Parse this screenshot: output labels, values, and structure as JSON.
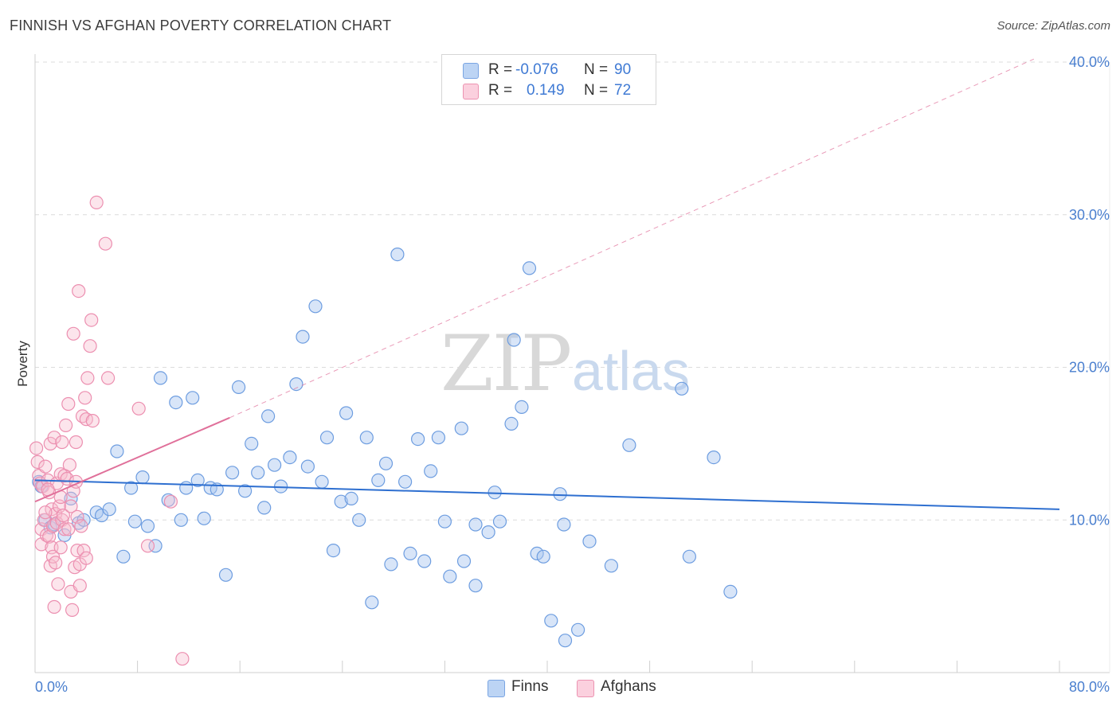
{
  "header": {
    "title": "FINNISH VS AFGHAN POVERTY CORRELATION CHART",
    "source": "Source: ZipAtlas.com"
  },
  "watermark": {
    "zip": "ZIP",
    "atlas": "atlas"
  },
  "legend": {
    "rows": [
      {
        "r_label": "R =",
        "r_value": "-0.076",
        "n_label": "N =",
        "n_value": "90",
        "color": "#a8c6f0",
        "border": "#7aa5e3"
      },
      {
        "r_label": "R =",
        "r_value": "0.149",
        "n_label": "N =",
        "n_value": "72",
        "color": "#f7bdd0",
        "border": "#ec93b1"
      }
    ]
  },
  "bottom_legend": {
    "finns": "Finns",
    "afghans": "Afghans"
  },
  "colors": {
    "finns_fill": "rgba(168,198,240,0.45)",
    "finns_stroke": "#6d9de0",
    "afghans_fill": "rgba(247,189,208,0.40)",
    "afghans_stroke": "#ec8fb0",
    "finns_line": "#2e6fd0",
    "afghans_line": "#e0709a",
    "grid": "#dcdcdc"
  },
  "chart_data": {
    "type": "scatter",
    "title": "FINNISH VS AFGHAN POVERTY CORRELATION CHART",
    "xlabel": "",
    "ylabel": "Poverty",
    "xlim": [
      0,
      80
    ],
    "ylim": [
      0,
      40
    ],
    "x_tick_labels": [
      "0.0%",
      "80.0%"
    ],
    "y_tick_values": [
      10,
      20,
      30,
      40
    ],
    "y_tick_labels": [
      "10.0%",
      "20.0%",
      "30.0%",
      "40.0%"
    ],
    "series": [
      {
        "name": "Finns",
        "r": -0.076,
        "n": 90,
        "trend": {
          "x0": 0,
          "y0": 12.6,
          "x1": 80,
          "y1": 10.7
        },
        "points": [
          [
            0.3,
            12.5
          ],
          [
            0.5,
            12.2
          ],
          [
            0.8,
            10.0
          ],
          [
            1.2,
            9.5
          ],
          [
            1.5,
            9.7
          ],
          [
            2.3,
            9.0
          ],
          [
            2.8,
            11.4
          ],
          [
            3.4,
            9.8
          ],
          [
            3.8,
            10.0
          ],
          [
            4.8,
            10.5
          ],
          [
            5.2,
            10.3
          ],
          [
            5.8,
            10.7
          ],
          [
            6.4,
            14.5
          ],
          [
            6.9,
            7.6
          ],
          [
            7.5,
            12.1
          ],
          [
            7.8,
            9.9
          ],
          [
            8.4,
            12.8
          ],
          [
            8.8,
            9.6
          ],
          [
            9.4,
            8.3
          ],
          [
            9.8,
            19.3
          ],
          [
            10.4,
            11.3
          ],
          [
            11.0,
            17.7
          ],
          [
            11.4,
            10.0
          ],
          [
            11.8,
            12.1
          ],
          [
            12.3,
            18.0
          ],
          [
            12.7,
            12.6
          ],
          [
            13.2,
            10.1
          ],
          [
            13.7,
            12.1
          ],
          [
            14.2,
            12.0
          ],
          [
            14.9,
            6.4
          ],
          [
            15.4,
            13.1
          ],
          [
            15.9,
            18.7
          ],
          [
            16.4,
            11.9
          ],
          [
            16.9,
            15.0
          ],
          [
            17.4,
            13.1
          ],
          [
            17.9,
            10.8
          ],
          [
            18.2,
            16.8
          ],
          [
            18.7,
            13.6
          ],
          [
            19.2,
            12.2
          ],
          [
            19.9,
            14.1
          ],
          [
            20.4,
            18.9
          ],
          [
            20.9,
            22.0
          ],
          [
            21.3,
            13.5
          ],
          [
            21.9,
            24.0
          ],
          [
            22.4,
            12.5
          ],
          [
            22.8,
            15.4
          ],
          [
            23.3,
            8.0
          ],
          [
            23.9,
            11.2
          ],
          [
            24.3,
            17.0
          ],
          [
            24.7,
            11.4
          ],
          [
            25.3,
            10.0
          ],
          [
            25.9,
            15.4
          ],
          [
            26.3,
            4.6
          ],
          [
            26.8,
            12.6
          ],
          [
            27.4,
            13.7
          ],
          [
            27.8,
            7.1
          ],
          [
            28.3,
            27.4
          ],
          [
            28.9,
            12.5
          ],
          [
            29.3,
            7.8
          ],
          [
            29.9,
            15.3
          ],
          [
            30.4,
            7.3
          ],
          [
            30.9,
            13.2
          ],
          [
            31.5,
            15.4
          ],
          [
            32.0,
            9.9
          ],
          [
            32.4,
            6.3
          ],
          [
            33.3,
            16.0
          ],
          [
            33.5,
            7.3
          ],
          [
            34.4,
            9.7
          ],
          [
            34.4,
            5.7
          ],
          [
            35.4,
            9.2
          ],
          [
            35.9,
            11.8
          ],
          [
            36.3,
            9.9
          ],
          [
            37.2,
            16.3
          ],
          [
            37.4,
            21.8
          ],
          [
            38.0,
            17.4
          ],
          [
            38.6,
            26.5
          ],
          [
            39.2,
            7.8
          ],
          [
            39.7,
            7.6
          ],
          [
            40.3,
            3.4
          ],
          [
            41.0,
            11.7
          ],
          [
            41.3,
            9.7
          ],
          [
            41.4,
            2.1
          ],
          [
            42.4,
            2.8
          ],
          [
            43.3,
            8.6
          ],
          [
            45.0,
            7.0
          ],
          [
            46.4,
            14.9
          ],
          [
            50.5,
            18.6
          ],
          [
            51.1,
            7.6
          ],
          [
            53.0,
            14.1
          ],
          [
            54.3,
            5.3
          ]
        ]
      },
      {
        "name": "Afghans",
        "r": 0.149,
        "n": 72,
        "trend": {
          "x0": 0,
          "y0": 11.2,
          "x1": 15.2,
          "y1": 16.7
        },
        "trend_extended": {
          "x0": 15.2,
          "y0": 16.7,
          "x1": 78.0,
          "y1": 40.2
        },
        "points": [
          [
            0.1,
            14.7
          ],
          [
            0.2,
            13.8
          ],
          [
            0.3,
            12.9
          ],
          [
            0.4,
            12.4
          ],
          [
            0.5,
            9.4
          ],
          [
            0.5,
            8.4
          ],
          [
            0.6,
            12.2
          ],
          [
            0.7,
            10.0
          ],
          [
            0.8,
            13.5
          ],
          [
            0.9,
            9.0
          ],
          [
            1.0,
            12.6
          ],
          [
            1.1,
            11.8
          ],
          [
            1.1,
            8.9
          ],
          [
            1.2,
            15.0
          ],
          [
            1.2,
            7.0
          ],
          [
            1.3,
            10.7
          ],
          [
            1.3,
            8.2
          ],
          [
            1.4,
            7.6
          ],
          [
            1.4,
            9.6
          ],
          [
            1.5,
            15.4
          ],
          [
            1.5,
            4.3
          ],
          [
            1.6,
            10.4
          ],
          [
            1.6,
            7.2
          ],
          [
            1.7,
            9.8
          ],
          [
            1.7,
            12.4
          ],
          [
            1.8,
            5.8
          ],
          [
            1.9,
            10.9
          ],
          [
            2.0,
            13.0
          ],
          [
            2.0,
            8.2
          ],
          [
            2.1,
            15.1
          ],
          [
            2.1,
            10.0
          ],
          [
            2.2,
            10.3
          ],
          [
            2.3,
            9.4
          ],
          [
            2.3,
            12.9
          ],
          [
            2.4,
            16.2
          ],
          [
            2.5,
            12.7
          ],
          [
            2.6,
            17.6
          ],
          [
            2.6,
            9.4
          ],
          [
            2.7,
            13.6
          ],
          [
            2.8,
            5.3
          ],
          [
            2.8,
            10.9
          ],
          [
            2.9,
            4.1
          ],
          [
            3.0,
            11.9
          ],
          [
            3.0,
            22.2
          ],
          [
            3.1,
            6.9
          ],
          [
            3.2,
            15.1
          ],
          [
            3.3,
            8.0
          ],
          [
            3.3,
            10.2
          ],
          [
            3.4,
            25.0
          ],
          [
            3.5,
            7.1
          ],
          [
            3.5,
            5.7
          ],
          [
            3.6,
            9.6
          ],
          [
            3.7,
            16.8
          ],
          [
            3.8,
            8.0
          ],
          [
            3.9,
            18.0
          ],
          [
            4.0,
            16.6
          ],
          [
            4.0,
            7.5
          ],
          [
            4.1,
            19.3
          ],
          [
            4.3,
            21.4
          ],
          [
            4.4,
            23.1
          ],
          [
            4.5,
            16.5
          ],
          [
            4.8,
            30.8
          ],
          [
            5.5,
            28.1
          ],
          [
            5.7,
            19.3
          ],
          [
            8.1,
            17.3
          ],
          [
            8.8,
            8.3
          ],
          [
            10.6,
            11.2
          ],
          [
            11.5,
            0.9
          ],
          [
            3.2,
            12.5
          ],
          [
            2.0,
            11.5
          ],
          [
            1.0,
            12.0
          ],
          [
            0.8,
            10.5
          ]
        ]
      }
    ]
  }
}
